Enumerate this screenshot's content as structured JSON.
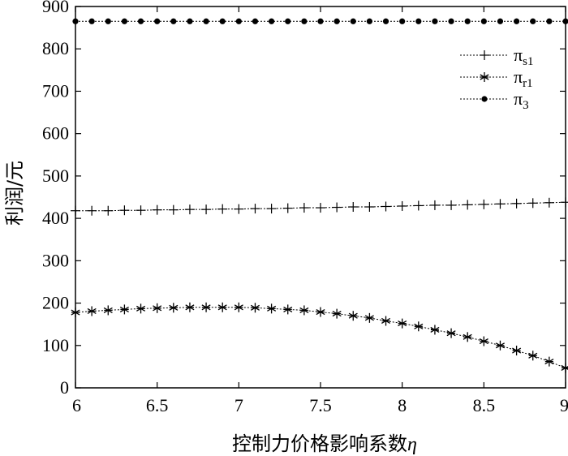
{
  "chart_data": {
    "type": "line",
    "xlabel": "控制力价格影响系数",
    "xlabel_symbol": "η",
    "ylabel": "利润/元",
    "xlim": [
      6,
      9
    ],
    "ylim": [
      0,
      900
    ],
    "x_ticks": [
      "6",
      "6.5",
      "7",
      "7.5",
      "8",
      "8.5",
      "9"
    ],
    "y_ticks": [
      "0",
      "100",
      "200",
      "300",
      "400",
      "500",
      "600",
      "700",
      "800",
      "900"
    ],
    "grid": false,
    "legend_position": "top-right",
    "x": [
      6.0,
      6.1,
      6.2,
      6.3,
      6.4,
      6.5,
      6.6,
      6.7,
      6.8,
      6.9,
      7.0,
      7.1,
      7.2,
      7.3,
      7.4,
      7.5,
      7.6,
      7.7,
      7.8,
      7.9,
      8.0,
      8.1,
      8.2,
      8.3,
      8.4,
      8.5,
      8.6,
      8.7,
      8.8,
      8.9,
      9.0
    ],
    "series": [
      {
        "name": "π",
        "sub": "s1",
        "marker": "plus",
        "values": [
          418,
          418,
          418,
          419,
          419,
          420,
          420,
          421,
          421,
          422,
          422,
          423,
          423,
          424,
          425,
          425,
          426,
          427,
          427,
          428,
          429,
          430,
          431,
          431,
          432,
          433,
          434,
          435,
          436,
          437,
          438
        ]
      },
      {
        "name": "π",
        "sub": "r1",
        "marker": "asterisk",
        "values": [
          178,
          181,
          183,
          185,
          187,
          188,
          189,
          190,
          190,
          190,
          190,
          189,
          187,
          185,
          183,
          179,
          175,
          170,
          165,
          158,
          152,
          145,
          137,
          129,
          120,
          110,
          100,
          88,
          76,
          62,
          47
        ]
      },
      {
        "name": "π",
        "sub": "3",
        "marker": "dot",
        "values": [
          865,
          865,
          865,
          865,
          865,
          865,
          865,
          865,
          865,
          865,
          865,
          865,
          865,
          865,
          865,
          865,
          865,
          865,
          865,
          865,
          865,
          865,
          865,
          865,
          865,
          865,
          865,
          865,
          865,
          865,
          865
        ]
      }
    ]
  }
}
